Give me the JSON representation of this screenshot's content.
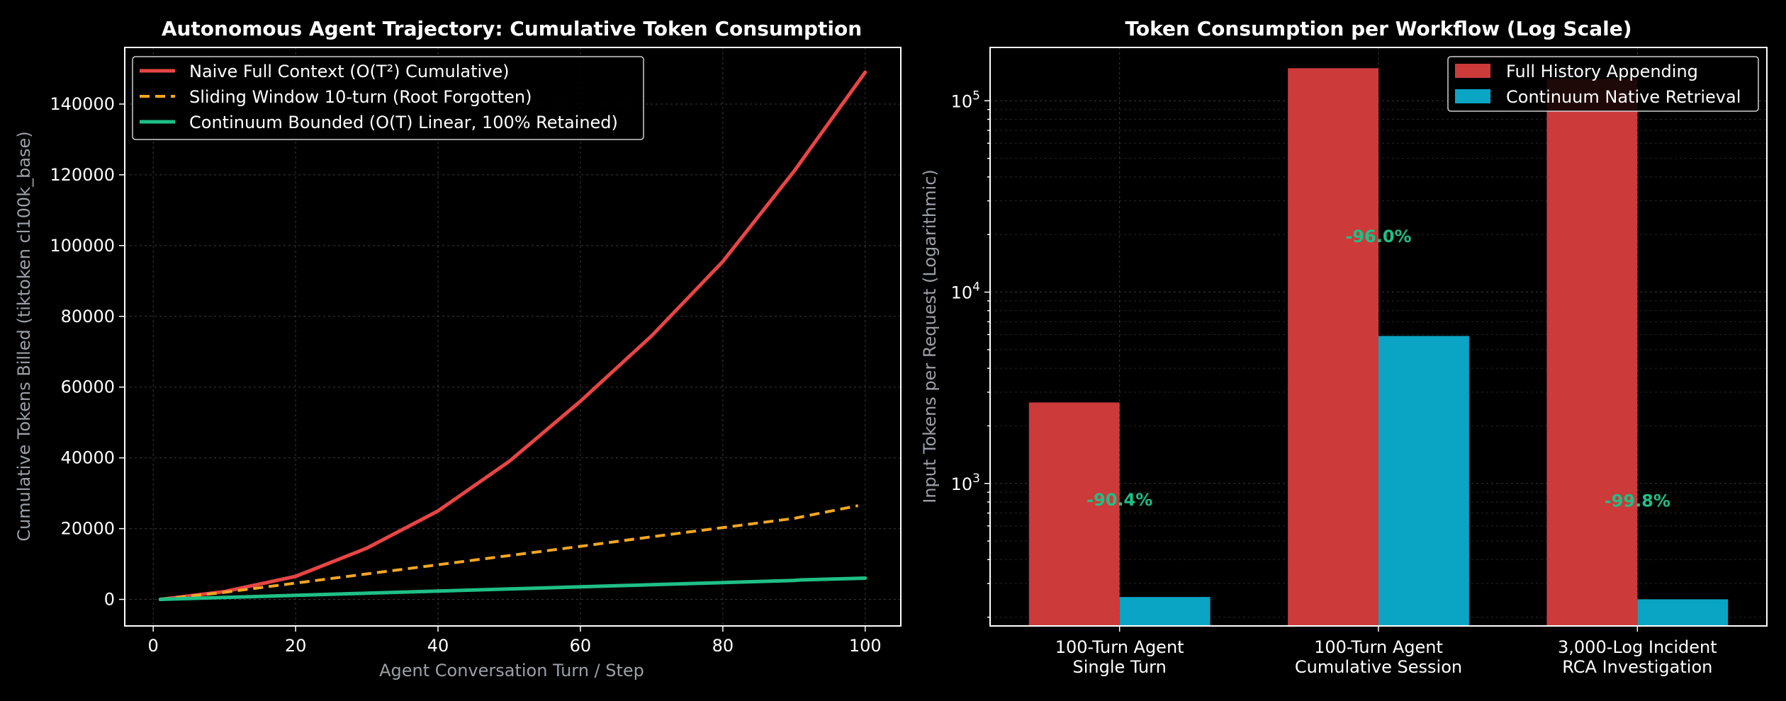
{
  "colors": {
    "background": "#000000",
    "axes": "#ffffff",
    "grid": "#3a3a3a",
    "label": "#9aa0a6",
    "naive": "#e84545",
    "sliding": "#f5a623",
    "continuum": "#1fbf86",
    "bar_full": "#cc3a3a",
    "bar_cont": "#0aa5c4",
    "pct": "#1fbf86"
  },
  "chart_data": [
    {
      "type": "line",
      "title": "Autonomous Agent Trajectory: Cumulative Token Consumption",
      "xlabel": "Agent Conversation Turn / Step",
      "ylabel": "Cumulative Tokens Billed (tiktoken cl100k_base)",
      "xlim": [
        -4,
        105
      ],
      "ylim": [
        -7500,
        156000
      ],
      "xticks": [
        0,
        20,
        40,
        60,
        80,
        100
      ],
      "xtick_labels": [
        "0",
        "20",
        "40",
        "60",
        "80",
        "100"
      ],
      "yticks": [
        0,
        20000,
        40000,
        60000,
        80000,
        100000,
        120000,
        140000
      ],
      "ytick_labels": [
        "0",
        "20000",
        "40000",
        "60000",
        "80000",
        "100000",
        "120000",
        "140000"
      ],
      "grid": true,
      "legend_position": "top-left",
      "series": [
        {
          "name": "Naive Full Context (O(T²) Cumulative)",
          "style": "solid",
          "x": [
            1,
            10,
            20,
            30,
            40,
            50,
            60,
            70,
            80,
            90,
            100
          ],
          "y": [
            0,
            2200,
            6500,
            14500,
            25000,
            39000,
            56000,
            74500,
            95500,
            121000,
            149000
          ]
        },
        {
          "name": "Sliding Window 10-turn (Root Forgotten)",
          "style": "dashed",
          "x": [
            1,
            10,
            20,
            30,
            40,
            50,
            60,
            70,
            80,
            90,
            99
          ],
          "y": [
            0,
            2000,
            4600,
            7200,
            9800,
            12400,
            15000,
            17700,
            20300,
            22900,
            26500
          ]
        },
        {
          "name": "Continuum Bounded (O(T) Linear, 100% Retained)",
          "style": "solid",
          "x": [
            1,
            10,
            20,
            30,
            40,
            50,
            60,
            70,
            80,
            90,
            91,
            100
          ],
          "y": [
            0,
            540,
            1140,
            1740,
            2340,
            2940,
            3540,
            4140,
            4740,
            5340,
            5500,
            6000
          ]
        }
      ]
    },
    {
      "type": "bar",
      "title": "Token Consumption per Workflow (Log Scale)",
      "ylabel": "Input Tokens per Request (Logarithmic)",
      "yscale": "log",
      "ylim": [
        180,
        190000
      ],
      "yticks": [
        1000,
        10000,
        100000
      ],
      "ytick_labels": [
        "10",
        "10",
        "10"
      ],
      "ytick_exponents": [
        "3",
        "4",
        "5"
      ],
      "grid": true,
      "legend_position": "top-right",
      "categories": [
        "100-Turn Agent\nSingle Turn",
        "100-Turn Agent\nCumulative Session",
        "3,000-Log Incident\nRCA Investigation"
      ],
      "series": [
        {
          "name": "Full History Appending",
          "values": [
            2650,
            148000,
            130000
          ]
        },
        {
          "name": "Continuum Native Retrieval",
          "values": [
            255,
            5900,
            248
          ]
        }
      ],
      "annotations": [
        {
          "text": "-90.4%",
          "category": 0,
          "y": 820
        },
        {
          "text": "-96.0%",
          "category": 1,
          "y": 19500
        },
        {
          "text": "-99.8%",
          "category": 2,
          "y": 810
        }
      ]
    }
  ]
}
